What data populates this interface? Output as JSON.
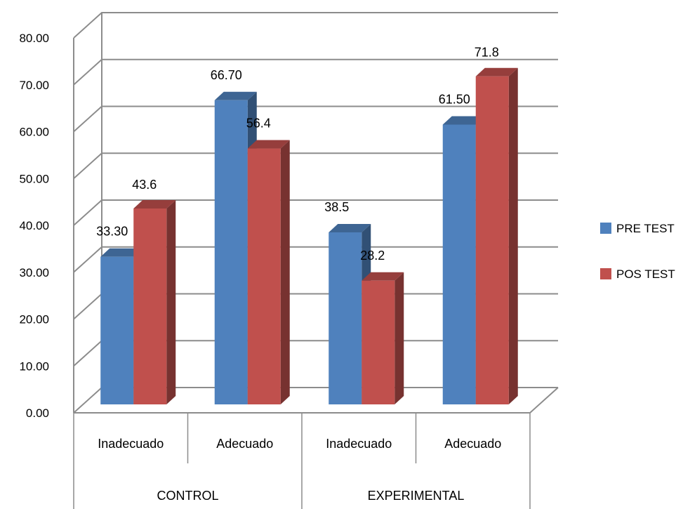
{
  "chart_data": {
    "type": "bar",
    "style": "3d-clustered-column",
    "groups": [
      {
        "label": "CONTROL",
        "categories": [
          "Inadecuado",
          "Adecuado"
        ]
      },
      {
        "label": "EXPERIMENTAL",
        "categories": [
          "Inadecuado",
          "Adecuado"
        ]
      }
    ],
    "categories": [
      "Inadecuado",
      "Adecuado",
      "Inadecuado",
      "Adecuado"
    ],
    "series": [
      {
        "name": "PRE TEST",
        "color": "#4F81BD",
        "values": [
          33.3,
          66.7,
          38.5,
          61.5
        ],
        "labels": [
          "33.30",
          "66.70",
          "38.5",
          "61.50"
        ]
      },
      {
        "name": "POS TEST",
        "color": "#C0504D",
        "values": [
          43.6,
          56.4,
          28.2,
          71.8
        ],
        "labels": [
          "43.6",
          "56.4",
          "28.2",
          "71.8"
        ]
      }
    ],
    "ylim": [
      0,
      80
    ],
    "yticks": [
      "0.00",
      "10.00",
      "20.00",
      "30.00",
      "40.00",
      "50.00",
      "60.00",
      "70.00",
      "80.00"
    ],
    "grid": true,
    "legend": "right",
    "title": "",
    "xlabel": "",
    "ylabel": ""
  }
}
